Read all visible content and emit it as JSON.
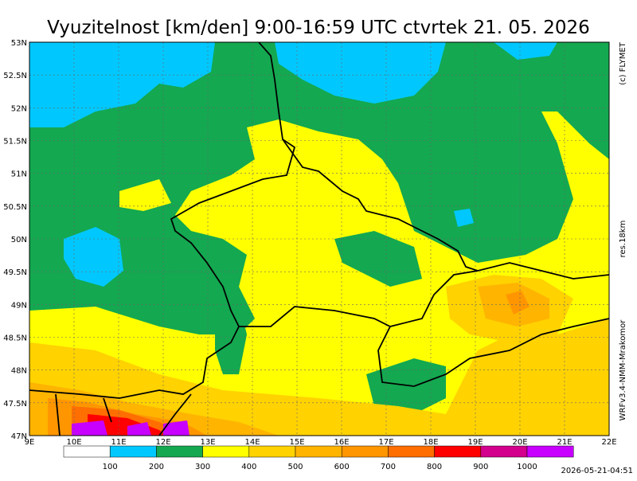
{
  "title": "Vyuzitelnost [km/den] 9:00-16:59 UTC ctvrtek 21. 05. 2026",
  "side_labels": {
    "copyright": "(c) FLYMET",
    "resolution": "res.18km",
    "model": "WRFv3.4-NMM-Mrakomor"
  },
  "lat_ticks": [
    "53N",
    "52.5N",
    "52N",
    "51.5N",
    "51N",
    "50.5N",
    "50N",
    "49.5N",
    "49N",
    "48.5N",
    "48N",
    "47.5N",
    "47N"
  ],
  "lon_ticks": [
    "9E",
    "10E",
    "11E",
    "12E",
    "13E",
    "14E",
    "15E",
    "16E",
    "17E",
    "18E",
    "19E",
    "20E",
    "21E",
    "22E"
  ],
  "legend": {
    "labels": [
      "100",
      "200",
      "300",
      "400",
      "500",
      "600",
      "700",
      "800",
      "900",
      "1000"
    ],
    "colors": [
      "#ffffff",
      "#00c8ff",
      "#14a850",
      "#ffff00",
      "#ffd200",
      "#ffb400",
      "#ff9600",
      "#ff6e00",
      "#ff0000",
      "#d2008c",
      "#c800ff"
    ]
  },
  "timestamp": "2026-05-21-04:51"
}
